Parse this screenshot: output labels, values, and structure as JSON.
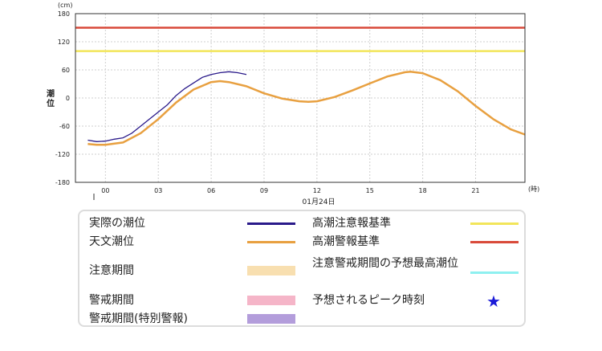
{
  "chart_data": {
    "type": "line",
    "unit_label": "(cm)",
    "ylabel": "潮位",
    "x_unit_label": "(時)",
    "date_label": "01月24日",
    "xlim": [
      -1.7,
      23.8
    ],
    "ylim": [
      -180,
      180
    ],
    "yticks": [
      -180,
      -120,
      -60,
      0,
      60,
      120,
      180
    ],
    "xticks": [
      0,
      3,
      6,
      9,
      12,
      15,
      18,
      21
    ],
    "xtick_labels": [
      "00",
      "03",
      "06",
      "09",
      "12",
      "15",
      "18",
      "21"
    ],
    "reference_lines": [
      {
        "name": "高潮警報基準",
        "value": 150,
        "color": "#d94a3a"
      },
      {
        "name": "高潮注意報基準",
        "value": 100,
        "color": "#f2e55a"
      }
    ],
    "series": [
      {
        "name": "天文潮位",
        "color": "#e8a040",
        "x": [
          -1.0,
          -0.5,
          0.0,
          1.0,
          2.0,
          3.0,
          4.0,
          5.0,
          6.0,
          6.5,
          7.0,
          8.0,
          9.0,
          10.0,
          11.0,
          11.5,
          12.0,
          13.0,
          14.0,
          15.0,
          16.0,
          17.0,
          17.3,
          18.0,
          19.0,
          20.0,
          21.0,
          22.0,
          23.0,
          23.8
        ],
        "values": [
          -98,
          -100,
          -100,
          -95,
          -75,
          -45,
          -10,
          18,
          34,
          36,
          34,
          25,
          10,
          -1,
          -7,
          -8,
          -7,
          2,
          16,
          31,
          46,
          55,
          56,
          53,
          38,
          14,
          -17,
          -45,
          -67,
          -78
        ]
      },
      {
        "name": "実際の潮位",
        "color": "#2a1a8a",
        "x": [
          -1.0,
          -0.5,
          0.0,
          0.5,
          1.0,
          1.5,
          2.0,
          2.5,
          3.0,
          3.5,
          4.0,
          4.5,
          5.0,
          5.5,
          6.0,
          6.5,
          7.0,
          7.5,
          8.0
        ],
        "values": [
          -90,
          -93,
          -92,
          -88,
          -85,
          -75,
          -60,
          -45,
          -30,
          -15,
          5,
          20,
          32,
          44,
          50,
          54,
          56,
          54,
          50
        ]
      }
    ],
    "grid": true
  },
  "legend": {
    "items": [
      {
        "label": "実際の潮位",
        "color": "#2a1a8a",
        "kind": "line"
      },
      {
        "label": "天文潮位",
        "color": "#e8a040",
        "kind": "line"
      },
      {
        "label": "注意期間",
        "color": "#f8dfb0",
        "kind": "band"
      },
      {
        "label": "警戒期間",
        "color": "#f5b5c8",
        "kind": "band"
      },
      {
        "label": "警戒期間(特別警報)",
        "color": "#b39ddb",
        "kind": "band"
      },
      {
        "label": "高潮注意報基準",
        "color": "#f2e55a",
        "kind": "line"
      },
      {
        "label": "高潮警報基準",
        "color": "#d94a3a",
        "kind": "line"
      },
      {
        "label": "注意警戒期間の予想最高潮位",
        "color": "#8ef0f0",
        "kind": "line"
      },
      {
        "label": "予想されるピーク時刻",
        "color": "#1a1ad8",
        "kind": "star",
        "symbol": "★"
      }
    ]
  }
}
